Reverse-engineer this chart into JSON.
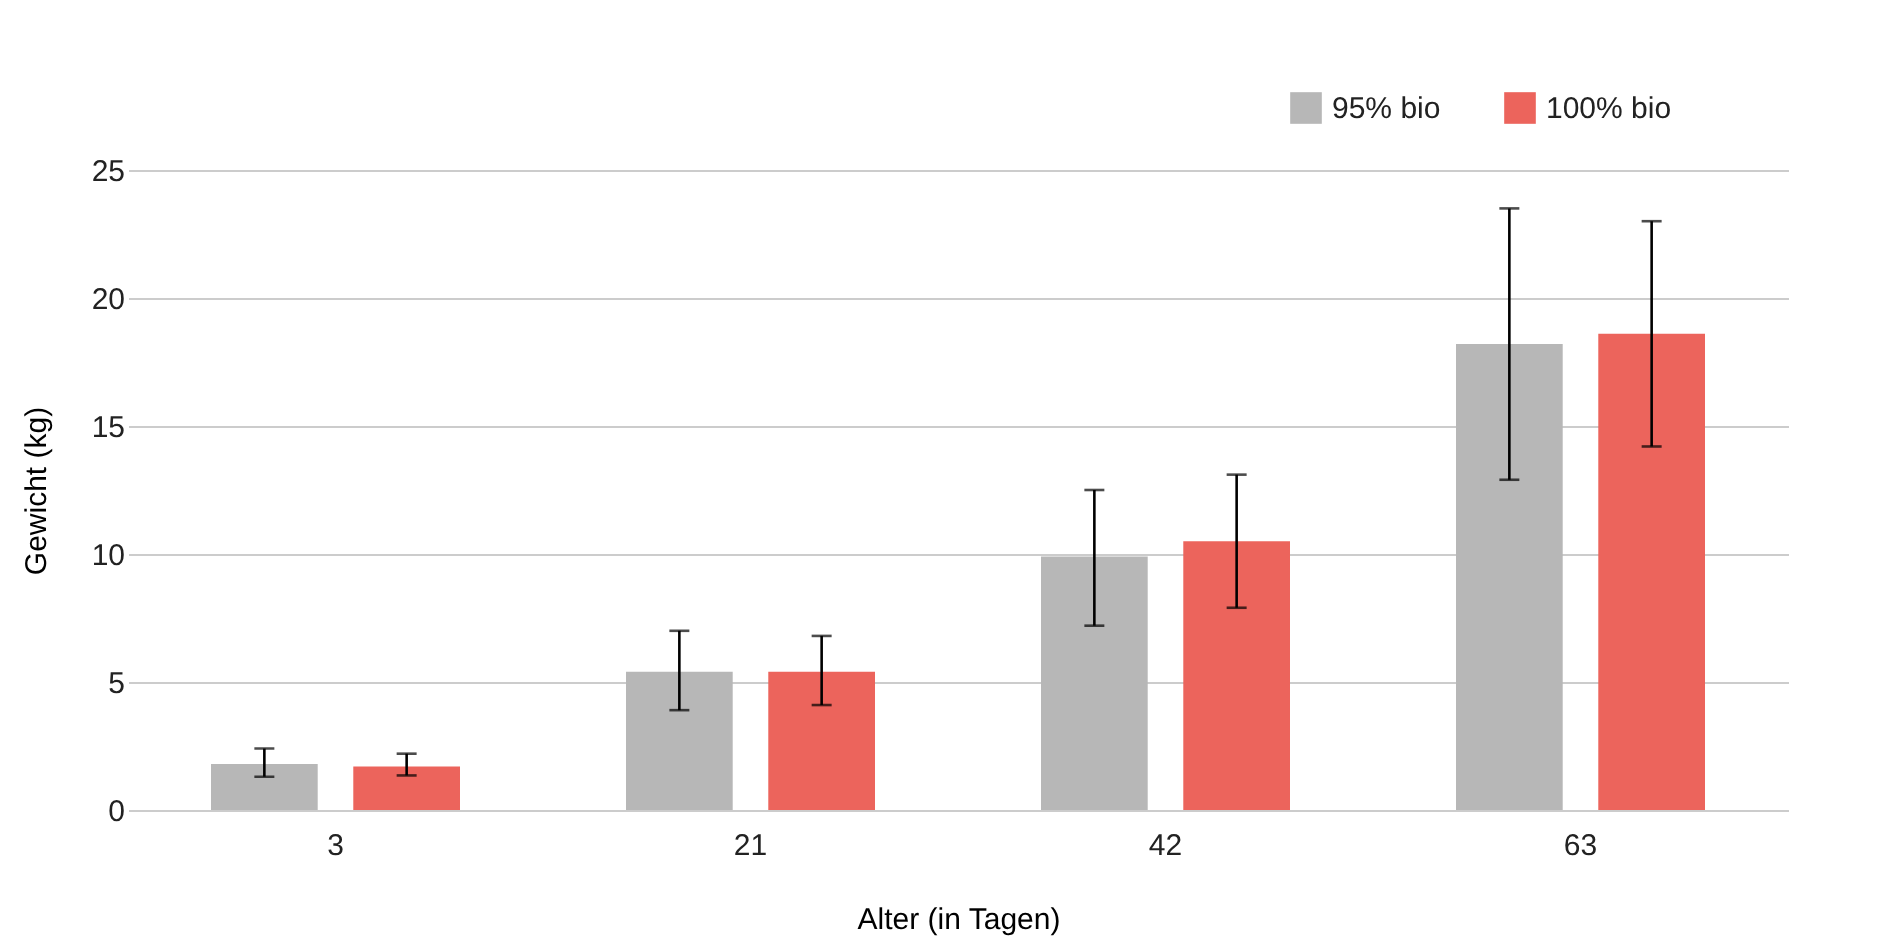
{
  "chart_data": {
    "type": "bar",
    "xlabel": "Alter (in Tagen)",
    "ylabel": "Gewicht (kg)",
    "categories": [
      "3",
      "21",
      "42",
      "63"
    ],
    "series": [
      {
        "name": "95% bio",
        "color": "#b7b7b7",
        "values": [
          1.8,
          5.4,
          9.9,
          18.2
        ],
        "errors": [
          [
            1.3,
            2.4
          ],
          [
            3.9,
            7.0
          ],
          [
            7.2,
            12.5
          ],
          [
            12.9,
            23.5
          ]
        ]
      },
      {
        "name": "100% bio",
        "color": "#ec645c",
        "values": [
          1.7,
          5.4,
          10.5,
          18.6
        ],
        "errors": [
          [
            1.35,
            2.2
          ],
          [
            4.1,
            6.8
          ],
          [
            7.9,
            13.1
          ],
          [
            14.2,
            23.0
          ]
        ]
      }
    ],
    "ylim": [
      0,
      25
    ],
    "yticks": [
      0,
      5,
      10,
      15,
      20,
      25
    ],
    "grid": "y",
    "legend": "top right"
  }
}
